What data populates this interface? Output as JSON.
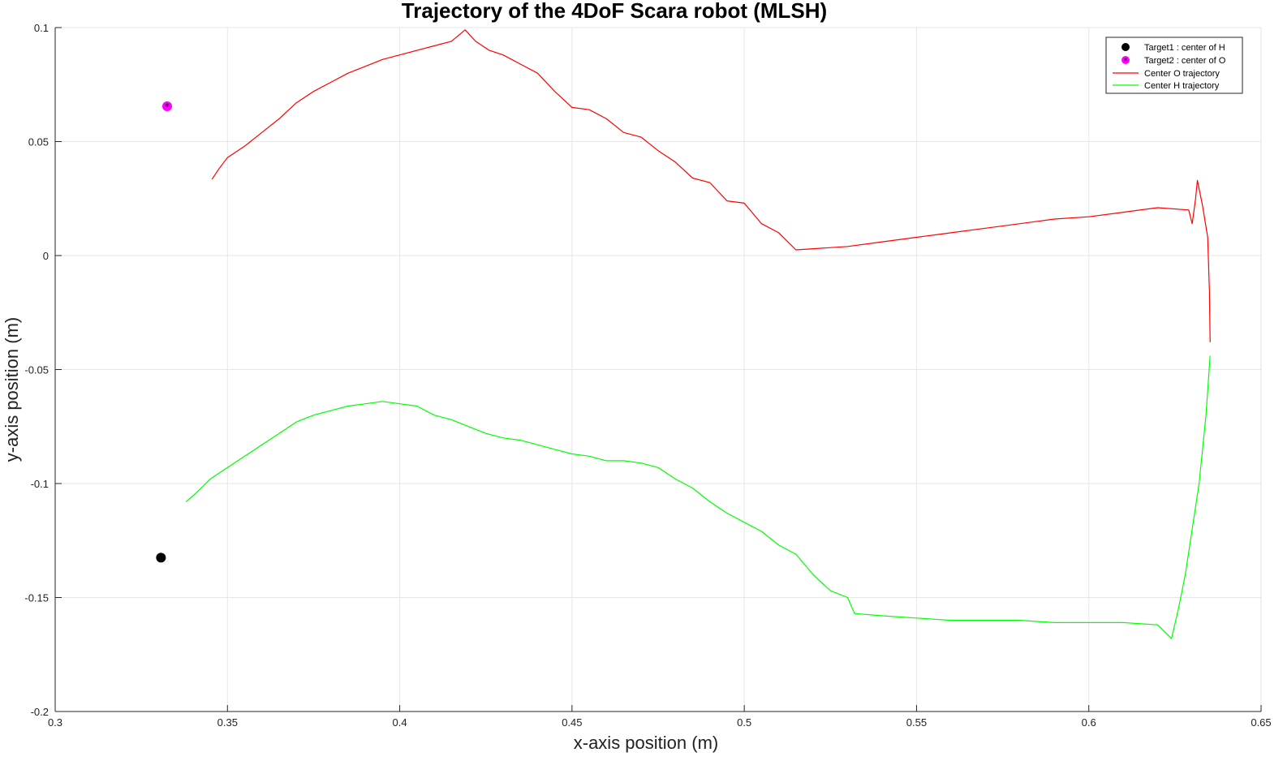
{
  "chart_data": {
    "type": "line",
    "title": "Trajectory of the 4DoF Scara robot (MLSH)",
    "xlabel": "x-axis position (m)",
    "ylabel": "y-axis position (m)",
    "xlim": [
      0.3,
      0.65
    ],
    "ylim": [
      -0.2,
      0.1
    ],
    "xticks": [
      0.3,
      0.35,
      0.4,
      0.45,
      0.5,
      0.55,
      0.6,
      0.65
    ],
    "xtick_labels": [
      "0.3",
      "0.35",
      "0.4",
      "0.45",
      "0.5",
      "0.55",
      "0.6",
      "0.65"
    ],
    "yticks": [
      0.1,
      0.05,
      0,
      -0.05,
      -0.1,
      -0.15,
      -0.2
    ],
    "ytick_labels": [
      "0.1",
      "0.05",
      "0",
      "-0.05",
      "-0.1",
      "-0.15",
      "-0.2"
    ],
    "grid": true,
    "legend_position": "top-right",
    "series": [
      {
        "name": "Target1 : center of H",
        "kind": "marker",
        "marker": "filled-circle",
        "color": "#000000",
        "points": [
          [
            0.3307,
            -0.1325
          ]
        ]
      },
      {
        "name": "Target2 : center of O",
        "kind": "marker",
        "marker": "filled-circle-asterisk",
        "color": "#ff00ff",
        "points": [
          [
            0.3325,
            0.0655
          ]
        ]
      },
      {
        "name": "Center O trajectory",
        "kind": "line",
        "color": "#ff0000",
        "points": [
          [
            0.3455,
            0.0335
          ],
          [
            0.3475,
            0.038
          ],
          [
            0.35,
            0.043
          ],
          [
            0.355,
            0.048
          ],
          [
            0.36,
            0.054
          ],
          [
            0.365,
            0.06
          ],
          [
            0.37,
            0.067
          ],
          [
            0.375,
            0.072
          ],
          [
            0.38,
            0.076
          ],
          [
            0.385,
            0.08
          ],
          [
            0.39,
            0.083
          ],
          [
            0.395,
            0.086
          ],
          [
            0.4,
            0.088
          ],
          [
            0.405,
            0.09
          ],
          [
            0.41,
            0.092
          ],
          [
            0.415,
            0.094
          ],
          [
            0.419,
            0.099
          ],
          [
            0.422,
            0.094
          ],
          [
            0.426,
            0.09
          ],
          [
            0.43,
            0.088
          ],
          [
            0.435,
            0.084
          ],
          [
            0.44,
            0.08
          ],
          [
            0.445,
            0.072
          ],
          [
            0.45,
            0.065
          ],
          [
            0.455,
            0.064
          ],
          [
            0.46,
            0.06
          ],
          [
            0.465,
            0.054
          ],
          [
            0.47,
            0.052
          ],
          [
            0.475,
            0.046
          ],
          [
            0.48,
            0.041
          ],
          [
            0.485,
            0.034
          ],
          [
            0.49,
            0.032
          ],
          [
            0.495,
            0.024
          ],
          [
            0.5,
            0.023
          ],
          [
            0.505,
            0.014
          ],
          [
            0.51,
            0.01
          ],
          [
            0.515,
            0.0025
          ],
          [
            0.52,
            0.003
          ],
          [
            0.53,
            0.004
          ],
          [
            0.54,
            0.006
          ],
          [
            0.55,
            0.008
          ],
          [
            0.56,
            0.01
          ],
          [
            0.57,
            0.012
          ],
          [
            0.58,
            0.014
          ],
          [
            0.59,
            0.016
          ],
          [
            0.6,
            0.017
          ],
          [
            0.61,
            0.019
          ],
          [
            0.62,
            0.021
          ],
          [
            0.629,
            0.02
          ],
          [
            0.63,
            0.014
          ],
          [
            0.631,
            0.025
          ],
          [
            0.6315,
            0.033
          ],
          [
            0.633,
            0.022
          ],
          [
            0.6345,
            0.008
          ],
          [
            0.635,
            -0.015
          ],
          [
            0.6352,
            -0.038
          ]
        ]
      },
      {
        "name": "Center H trajectory",
        "kind": "line",
        "color": "#00ff00",
        "points": [
          [
            0.338,
            -0.108
          ],
          [
            0.341,
            -0.104
          ],
          [
            0.345,
            -0.098
          ],
          [
            0.35,
            -0.093
          ],
          [
            0.355,
            -0.088
          ],
          [
            0.36,
            -0.083
          ],
          [
            0.365,
            -0.078
          ],
          [
            0.37,
            -0.073
          ],
          [
            0.375,
            -0.07
          ],
          [
            0.38,
            -0.068
          ],
          [
            0.385,
            -0.066
          ],
          [
            0.39,
            -0.065
          ],
          [
            0.395,
            -0.064
          ],
          [
            0.4,
            -0.065
          ],
          [
            0.405,
            -0.066
          ],
          [
            0.41,
            -0.07
          ],
          [
            0.415,
            -0.072
          ],
          [
            0.42,
            -0.075
          ],
          [
            0.425,
            -0.078
          ],
          [
            0.43,
            -0.08
          ],
          [
            0.435,
            -0.081
          ],
          [
            0.44,
            -0.083
          ],
          [
            0.445,
            -0.085
          ],
          [
            0.45,
            -0.087
          ],
          [
            0.455,
            -0.088
          ],
          [
            0.46,
            -0.09
          ],
          [
            0.465,
            -0.09
          ],
          [
            0.47,
            -0.091
          ],
          [
            0.475,
            -0.093
          ],
          [
            0.48,
            -0.098
          ],
          [
            0.485,
            -0.102
          ],
          [
            0.49,
            -0.108
          ],
          [
            0.495,
            -0.113
          ],
          [
            0.5,
            -0.117
          ],
          [
            0.505,
            -0.121
          ],
          [
            0.51,
            -0.127
          ],
          [
            0.515,
            -0.131
          ],
          [
            0.52,
            -0.14
          ],
          [
            0.525,
            -0.147
          ],
          [
            0.53,
            -0.15
          ],
          [
            0.532,
            -0.157
          ],
          [
            0.54,
            -0.158
          ],
          [
            0.55,
            -0.159
          ],
          [
            0.56,
            -0.16
          ],
          [
            0.57,
            -0.16
          ],
          [
            0.58,
            -0.16
          ],
          [
            0.59,
            -0.161
          ],
          [
            0.6,
            -0.161
          ],
          [
            0.61,
            -0.161
          ],
          [
            0.62,
            -0.162
          ],
          [
            0.624,
            -0.168
          ],
          [
            0.626,
            -0.155
          ],
          [
            0.628,
            -0.14
          ],
          [
            0.63,
            -0.12
          ],
          [
            0.632,
            -0.1
          ],
          [
            0.634,
            -0.07
          ],
          [
            0.6352,
            -0.044
          ]
        ]
      }
    ]
  }
}
